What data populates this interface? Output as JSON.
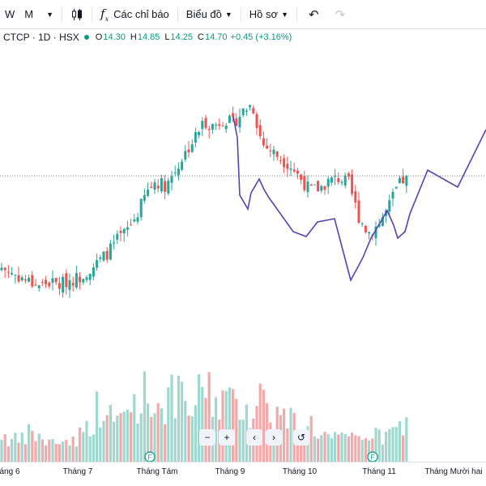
{
  "toolbar": {
    "intervals": [
      "W",
      "M"
    ],
    "indicators_label": "Các chỉ báo",
    "chart_label": "Biểu đồ",
    "profile_label": "Hồ sơ"
  },
  "legend": {
    "symbol": "CTCP · 1D · HSX",
    "open_label": "O",
    "open": "14.30",
    "high_label": "H",
    "high": "14.85",
    "low_label": "L",
    "low": "14.25",
    "close_label": "C",
    "close": "14.70",
    "change": "+0.45 (+3.16%)"
  },
  "nav": {
    "zoom_out": "−",
    "zoom_in": "+",
    "prev": "‹",
    "next": "›",
    "reset": "↺"
  },
  "colors": {
    "up": "#26a69a",
    "down": "#ef5350",
    "vol_up": "#9fd8cf",
    "vol_down": "#f3a9a9",
    "drawing": "#5b3fb5",
    "event_badge": "#22ab94"
  },
  "event_badges": [
    "F",
    "F"
  ],
  "time_axis": [
    {
      "label": "áng 6"
    },
    {
      "label": "Tháng 7"
    },
    {
      "label": "Tháng Tám"
    },
    {
      "label": "Tháng 9"
    },
    {
      "label": "Tháng 10"
    },
    {
      "label": "Tháng 11"
    },
    {
      "label": "Tháng Mười hai"
    }
  ],
  "chart_data": {
    "type": "candlestick",
    "current_price": 14.7,
    "last_bar": {
      "open": 14.3,
      "high": 14.85,
      "low": 14.25,
      "close": 14.7
    },
    "price_path": [
      11.0,
      10.8,
      10.6,
      10.4,
      10.3,
      10.4,
      10.3,
      10.5,
      10.6,
      10.9,
      11.2,
      11.6,
      12.1,
      12.5,
      13.1,
      14.0,
      14.5,
      14.3,
      14.9,
      15.6,
      16.2,
      16.9,
      16.7,
      17.0,
      16.8,
      17.3,
      17.6,
      16.0,
      15.7,
      15.4,
      15.1,
      14.6,
      14.1,
      14.2,
      14.5,
      14.6,
      14.4,
      13.1,
      12.4,
      12.7,
      13.3,
      14.2,
      14.7
    ],
    "volume_path": [
      0.28,
      0.22,
      0.2,
      0.3,
      0.24,
      0.18,
      0.22,
      0.2,
      0.26,
      0.35,
      0.55,
      0.45,
      0.4,
      0.52,
      0.62,
      0.7,
      0.55,
      0.62,
      0.66,
      0.58,
      0.48,
      0.86,
      0.6,
      0.66,
      0.55,
      0.62,
      0.48,
      0.7,
      0.5,
      0.45,
      0.42,
      0.36,
      0.4,
      0.28,
      0.24,
      0.22,
      0.22,
      0.26,
      0.3,
      0.24,
      0.26,
      0.32,
      0.36
    ]
  }
}
